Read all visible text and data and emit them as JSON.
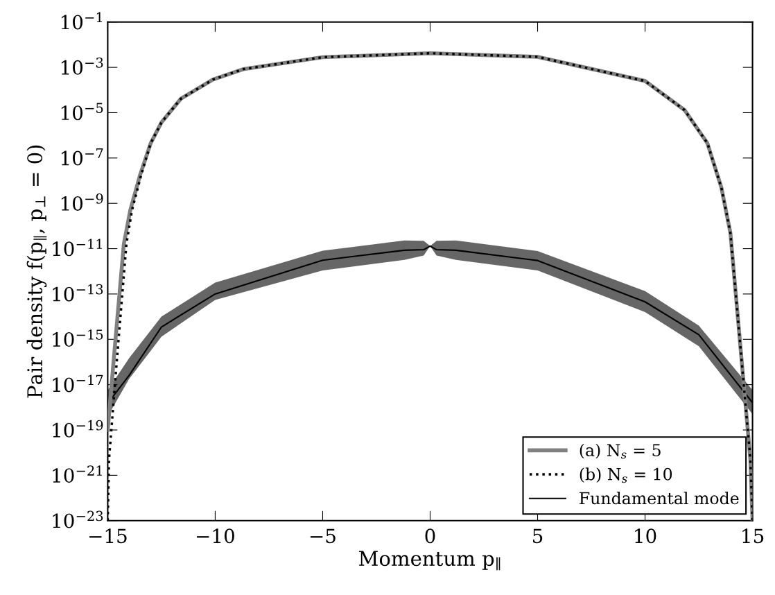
{
  "chart_data": {
    "type": "line",
    "xlabel": "Momentum p$_{∥}$",
    "ylabel": "Pair density f(p$_{∥}$, p$_{⊥}$ = 0)",
    "log": "y",
    "grid": false,
    "legend": "bottom right",
    "marker": "none",
    "xlim": [
      -15,
      15
    ],
    "xticks": [
      {
        "value": -15,
        "label": "−15"
      },
      {
        "value": -10,
        "label": "−10"
      },
      {
        "value": -5,
        "label": "−5"
      },
      0,
      5,
      10,
      15
    ],
    "ylim": [
      1e-23,
      0.1
    ],
    "yticks": [
      {
        "value": 1e-23,
        "label": "10$^{−23}$"
      },
      {
        "value": 1e-21,
        "label": "10$^{−21}$"
      },
      {
        "value": 1e-19,
        "label": "10$^{−19}$"
      },
      {
        "value": 1e-17,
        "label": "10$^{−17}$"
      },
      {
        "value": 1e-15,
        "label": "10$^{−15}$"
      },
      {
        "value": 1e-13,
        "label": "10$^{−13}$"
      },
      {
        "value": 1e-11,
        "label": "10$^{−11}$"
      },
      {
        "value": 1e-09,
        "label": "10$^{−9}$"
      },
      {
        "value": 1e-07,
        "label": "10$^{−7}$"
      },
      {
        "value": 1e-05,
        "label": "10$^{−5}$"
      },
      {
        "value": 0.001,
        "label": "10$^{−3}$"
      },
      {
        "value": 0.1,
        "label": "10$^{−1}$"
      }
    ],
    "series": [
      {
        "name": "(a) N$_{s}$ = 5",
        "color": "#808080",
        "line_style": "solid",
        "x": [
          -15,
          -14.75,
          -14.25,
          -13.95,
          -13.5,
          -13.0,
          -12.5,
          -11.6,
          -10.1,
          -8.7,
          -5,
          0,
          5,
          10,
          11.84,
          12.9,
          13.55,
          13.97,
          14.52,
          14.9,
          15
        ],
        "values": [
          1e-19,
          6e-17,
          1.6e-11,
          5e-10,
          1.7e-08,
          4.5e-07,
          3.7e-06,
          4.1e-05,
          0.00029,
          0.00083,
          0.0028,
          0.0042,
          0.0029,
          0.00025,
          1.3e-05,
          4.5e-07,
          5e-09,
          5e-11,
          6e-17,
          5e-21,
          1e-23
        ]
      },
      {
        "name": "(b) N$_{s}$ = 10",
        "color": "#000000",
        "line_style": "dotted",
        "x": [
          -15,
          -14.94,
          -14.6,
          -14.13,
          -13.87,
          -13.45,
          -13.0,
          -12.5,
          -11.6,
          -10.1,
          -8.7,
          -5,
          0,
          5,
          10,
          11.84,
          12.9,
          13.55,
          13.97,
          14.52,
          14.9,
          15
        ],
        "values": [
          1e-23,
          5e-21,
          6e-17,
          1.6e-11,
          5e-10,
          1.7e-08,
          4.5e-07,
          3.7e-06,
          4.1e-05,
          0.00029,
          0.00083,
          0.0028,
          0.0042,
          0.0029,
          0.00025,
          1.3e-05,
          4.5e-07,
          5e-09,
          5e-11,
          6e-17,
          5e-21,
          1e-23
        ]
      },
      {
        "name": "Fundamental mode",
        "color": "#000000",
        "line_style": "solid",
        "x": [
          -15,
          -14,
          -12.5,
          -10,
          -5,
          -1.2,
          -0.3,
          0,
          0.3,
          1.2,
          5,
          10,
          12.5,
          15
        ],
        "values": [
          1.5e-18,
          2.6e-17,
          3.5e-15,
          1e-13,
          3.1e-12,
          8.5e-12,
          9e-12,
          1.3e-11,
          9e-12,
          8.5e-12,
          3e-12,
          4.5e-14,
          1.6e-15,
          1.6e-18
        ],
        "lower": [
          4e-19,
          1.8e-17,
          1.3e-15,
          5.5e-14,
          1.1e-12,
          3.2e-12,
          5e-12,
          1.3e-11,
          5e-12,
          3.2e-12,
          1.1e-12,
          1.6e-14,
          5e-16,
          5e-19
        ],
        "upper": [
          5.8e-18,
          1.5e-16,
          1e-14,
          3.2e-13,
          8.1e-12,
          2.3e-11,
          2.2e-11,
          1.3e-11,
          2.2e-11,
          2.3e-11,
          7.9e-12,
          1.35e-13,
          4e-15,
          5.8e-18
        ]
      }
    ]
  }
}
